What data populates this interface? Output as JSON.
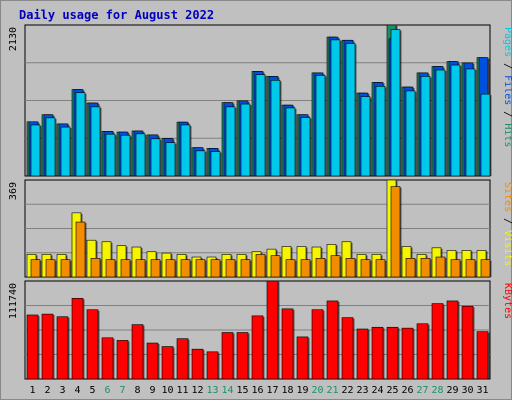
{
  "chart_data": {
    "type": "bar",
    "title": "Daily usage for August 2022",
    "categories": [
      "1",
      "2",
      "3",
      "4",
      "5",
      "6",
      "7",
      "8",
      "9",
      "10",
      "11",
      "12",
      "13",
      "14",
      "15",
      "16",
      "17",
      "18",
      "19",
      "20",
      "21",
      "22",
      "23",
      "24",
      "25",
      "26",
      "27",
      "28",
      "29",
      "30",
      "31"
    ],
    "weekend_days": [
      "6",
      "7",
      "13",
      "14",
      "20",
      "21",
      "27",
      "28"
    ],
    "panels": [
      {
        "id": "top",
        "ymax_label": "2130",
        "ylim": [
          0,
          2130
        ],
        "ylabel_parts": [
          {
            "text": "Pages",
            "color": "#00c8e8"
          },
          {
            "text": " / ",
            "color": "#000000"
          },
          {
            "text": "Files",
            "color": "#0050e0"
          },
          {
            "text": " / ",
            "color": "#000000"
          },
          {
            "text": "Hits",
            "color": "#1a8f6a"
          }
        ],
        "series": [
          {
            "name": "Hits",
            "color": "#1a8f6a",
            "values": [
              765,
              865,
              735,
              1220,
              1030,
              630,
              620,
              635,
              580,
              530,
              760,
              400,
              390,
              1035,
              1060,
              1475,
              1405,
              1000,
              865,
              1455,
              1960,
              1915,
              1170,
              1320,
              2130,
              1255,
              1455,
              1545,
              1615,
              1595,
              1670
            ]
          },
          {
            "name": "Files",
            "color": "#0050e0",
            "values": [
              765,
              865,
              735,
              1220,
              1030,
              630,
              620,
              635,
              580,
              530,
              760,
              400,
              390,
              1035,
              1060,
              1475,
              1405,
              1000,
              865,
              1455,
              1960,
              1915,
              1170,
              1320,
              1935,
              1255,
              1455,
              1545,
              1615,
              1595,
              1670
            ]
          },
          {
            "name": "Pages",
            "color": "#00c8e8",
            "values": [
              720,
              820,
              690,
              1175,
              975,
              590,
              575,
              595,
              525,
              470,
              720,
              355,
              345,
              975,
              1015,
              1430,
              1350,
              960,
              825,
              1420,
              1920,
              1870,
              1120,
              1265,
              2065,
              1200,
              1405,
              1495,
              1565,
              1510,
              1155
            ]
          }
        ]
      },
      {
        "id": "mid",
        "ymax_label": "369",
        "ylim": [
          0,
          369
        ],
        "ylabel_parts": [
          {
            "text": "Sites",
            "color": "#f28c00"
          },
          {
            "text": " / ",
            "color": "#000000"
          },
          {
            "text": "Visits",
            "color": "#f5f500"
          }
        ],
        "series": [
          {
            "name": "Visits",
            "color": "#f5f500",
            "values": [
              86,
              86,
              86,
              244,
              140,
              134,
              119,
              114,
              96,
              91,
              86,
              76,
              76,
              86,
              86,
              96,
              106,
              116,
              116,
              114,
              124,
              134,
              86,
              86,
              369,
              116,
              86,
              111,
              101,
              101,
              101
            ]
          },
          {
            "name": "Sites",
            "color": "#f28c00",
            "values": [
              66,
              66,
              66,
              209,
              71,
              66,
              66,
              66,
              66,
              66,
              66,
              66,
              66,
              66,
              66,
              86,
              81,
              66,
              66,
              71,
              81,
              71,
              66,
              66,
              344,
              71,
              71,
              76,
              66,
              66,
              66
            ]
          }
        ]
      },
      {
        "id": "bottom",
        "ymax_label": "111740",
        "ylim": [
          0,
          111740
        ],
        "ylabel_parts": [
          {
            "text": "KBytes",
            "color": "#ff0000"
          }
        ],
        "series": [
          {
            "name": "KBytes",
            "color": "#ff0000",
            "values": [
              73000,
              74000,
              71000,
              92000,
              79000,
              47000,
              44000,
              62000,
              41000,
              37000,
              46000,
              34000,
              31000,
              53000,
              53000,
              72000,
              111740,
              80000,
              48000,
              79000,
              89000,
              70000,
              57000,
              59000,
              59000,
              58000,
              63000,
              86000,
              89000,
              83000,
              54000
            ]
          }
        ]
      }
    ]
  }
}
